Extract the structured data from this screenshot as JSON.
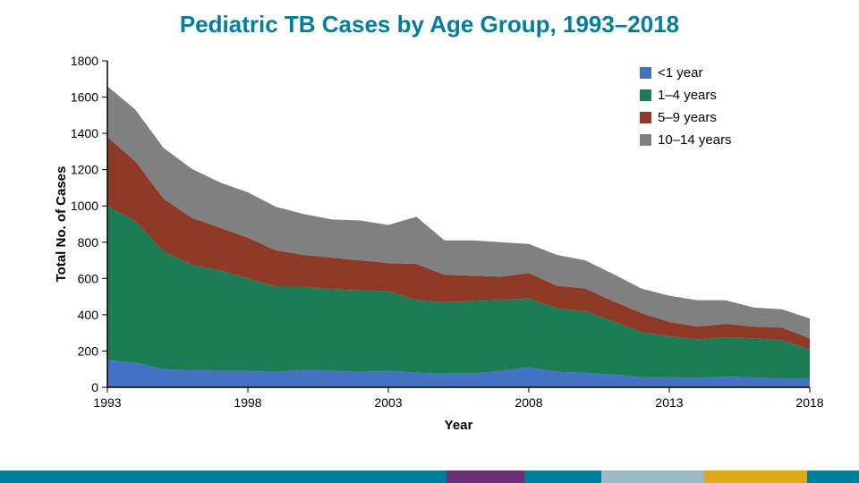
{
  "title": {
    "text": "Pediatric TB Cases by Age Group, 1993–2018",
    "color": "#007e9c",
    "fontsize": 26
  },
  "chart": {
    "type": "stacked-area",
    "background_color": "#ffffff",
    "plot_border_color": "#000000",
    "xlabel": "Year",
    "ylabel": "Total No. of Cases",
    "label_fontsize": 15,
    "label_weight": "bold",
    "tick_fontsize": 14,
    "xlim": [
      1993,
      2018
    ],
    "ylim": [
      0,
      1800
    ],
    "ytick_step": 200,
    "xtick_step": 5,
    "years": [
      1993,
      1994,
      1995,
      1996,
      1997,
      1998,
      1999,
      2000,
      2001,
      2002,
      2003,
      2004,
      2005,
      2006,
      2007,
      2008,
      2009,
      2010,
      2011,
      2012,
      2013,
      2014,
      2015,
      2016,
      2017,
      2018
    ],
    "series": [
      {
        "key": "lt1",
        "label": "<1 year",
        "color": "#4473c5",
        "values": [
          150,
          135,
          100,
          95,
          90,
          90,
          85,
          95,
          90,
          85,
          90,
          80,
          75,
          75,
          90,
          110,
          85,
          80,
          70,
          55,
          55,
          50,
          60,
          55,
          45,
          50
        ]
      },
      {
        "key": "y1_4",
        "label": "1–4 years",
        "color": "#1c7c54",
        "values": [
          850,
          780,
          650,
          580,
          555,
          510,
          470,
          460,
          450,
          450,
          440,
          400,
          395,
          400,
          390,
          380,
          350,
          340,
          295,
          250,
          225,
          215,
          215,
          215,
          215,
          160
        ]
      },
      {
        "key": "y5_9",
        "label": "5–9 years",
        "color": "#8f3a27",
        "values": [
          380,
          330,
          290,
          260,
          235,
          225,
          200,
          175,
          175,
          165,
          155,
          200,
          150,
          140,
          130,
          140,
          125,
          125,
          110,
          105,
          80,
          70,
          75,
          65,
          70,
          60
        ]
      },
      {
        "key": "y10_14",
        "label": "10–14 years",
        "color": "#808080",
        "values": [
          280,
          285,
          280,
          270,
          250,
          250,
          240,
          225,
          210,
          220,
          210,
          260,
          190,
          195,
          190,
          160,
          170,
          155,
          150,
          135,
          145,
          145,
          130,
          105,
          100,
          110
        ]
      }
    ],
    "legend": {
      "position": "inside-top-right",
      "fontsize": 15,
      "swatch_size": 13,
      "item_gap": 25
    }
  },
  "footer_bar": {
    "segments": [
      {
        "color": "#007e9c",
        "flex": 52
      },
      {
        "color": "#6a2e77",
        "flex": 9
      },
      {
        "color": "#007e9c",
        "flex": 9
      },
      {
        "color": "#9db8c9",
        "flex": 12
      },
      {
        "color": "#e0a81e",
        "flex": 12
      },
      {
        "color": "#007e9c",
        "flex": 6
      }
    ]
  }
}
